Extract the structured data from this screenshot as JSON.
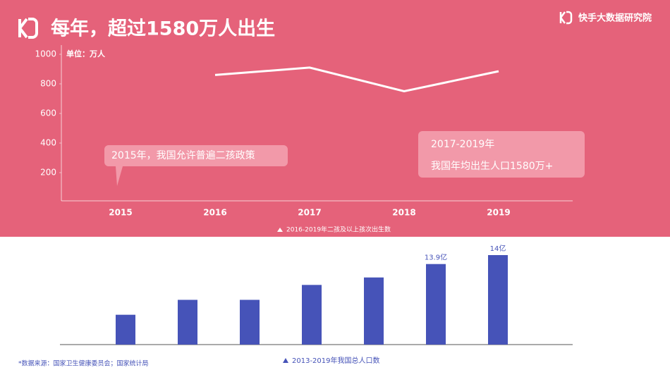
{
  "title": "每年，超过1580万人出生",
  "brand": "快手大数据研究院",
  "source": "*数据来源：国家卫生健康委员会；国家统计局",
  "chart_data": [
    {
      "type": "line",
      "unit_label": "单位：万人",
      "annotations": [
        "2015年，我国允许普遍二孩政策",
        "2017-2019年",
        "我国年均出生人口1580万+"
      ],
      "legend_label": "2016-2019年二孩及以上孩次出生数",
      "categories": [
        "2015",
        "2016",
        "2017",
        "2018",
        "2019"
      ],
      "values": [
        null,
        860,
        910,
        750,
        885
      ],
      "color": "#ffffff",
      "ylim": [
        0,
        1000
      ],
      "yticks": [
        200,
        400,
        600,
        800,
        1000
      ]
    },
    {
      "type": "bar",
      "legend_label": "2013-2019年我国总人口数",
      "categories": [
        null,
        null,
        null,
        null,
        null,
        null,
        null
      ],
      "values": [
        13.6,
        13.7,
        13.7,
        13.8,
        13.85,
        13.94,
        14.0
      ],
      "value_labels": [
        null,
        null,
        null,
        null,
        null,
        "13.9亿",
        "14亿"
      ],
      "color": "#4653b8",
      "ylim": [
        13.4,
        14.0
      ]
    }
  ]
}
